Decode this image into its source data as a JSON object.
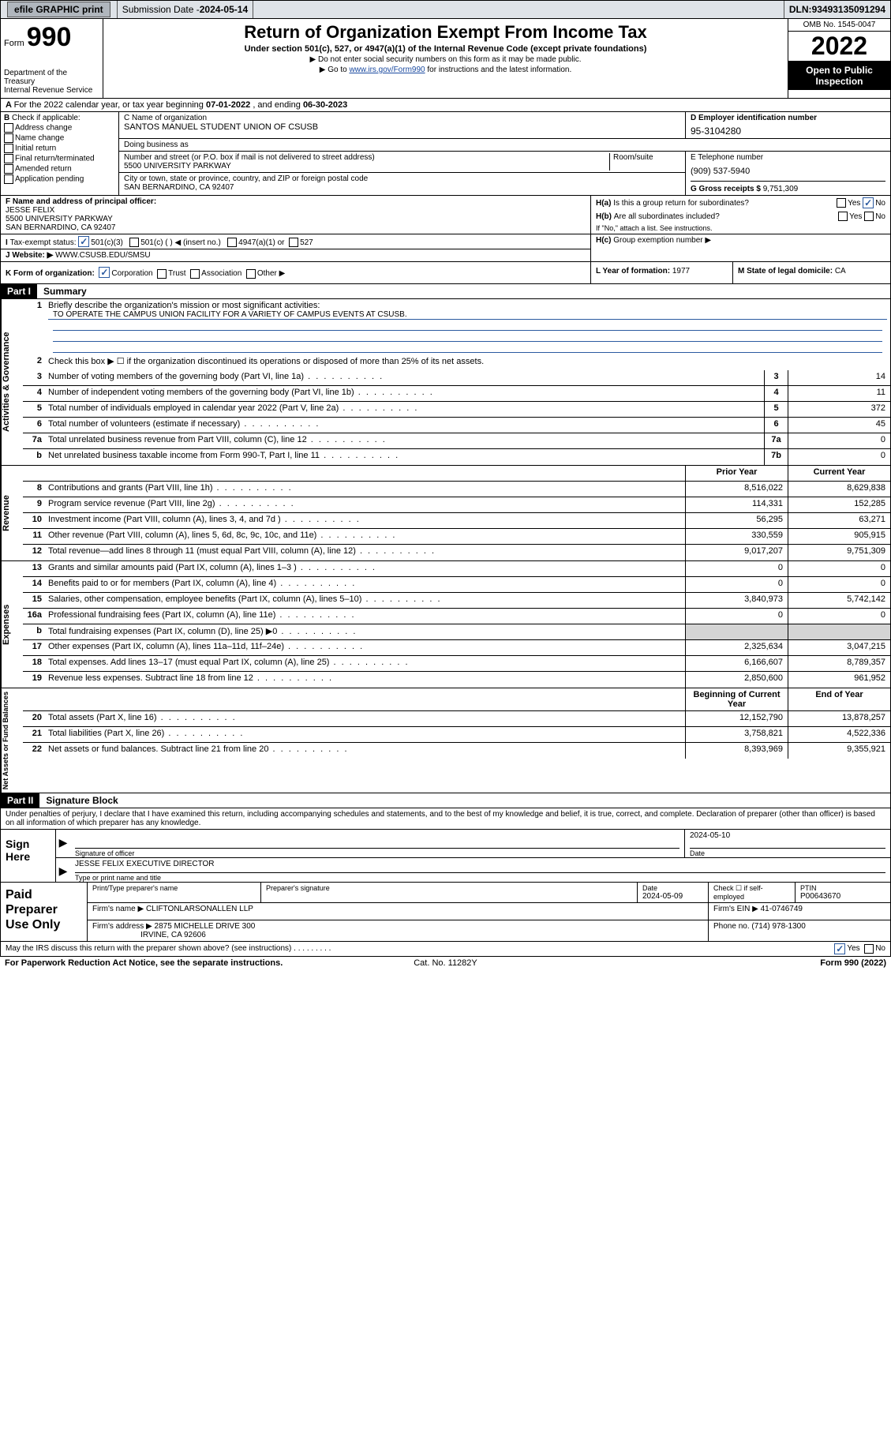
{
  "topbar": {
    "efile": "efile GRAPHIC print",
    "submission_label": "Submission Date - ",
    "submission_date": "2024-05-14",
    "dln_label": "DLN: ",
    "dln": "93493135091294"
  },
  "header": {
    "form_prefix": "Form",
    "form_no": "990",
    "dept": "Department of the Treasury",
    "irs": "Internal Revenue Service",
    "title": "Return of Organization Exempt From Income Tax",
    "sub": "Under section 501(c), 527, or 4947(a)(1) of the Internal Revenue Code (except private foundations)",
    "instr1": "Do not enter social security numbers on this form as it may be made public.",
    "instr2_pre": "Go to ",
    "instr2_link": "www.irs.gov/Form990",
    "instr2_post": " for instructions and the latest information.",
    "omb": "OMB No. 1545-0047",
    "year": "2022",
    "open": "Open to Public Inspection"
  },
  "A": {
    "text_pre": "For the 2022 calendar year, or tax year beginning ",
    "begin": "07-01-2022",
    "mid": " , and ending ",
    "end": "06-30-2023"
  },
  "B": {
    "hdr": "Check if applicable:",
    "items": [
      "Address change",
      "Name change",
      "Initial return",
      "Final return/terminated",
      "Amended return",
      "Application pending"
    ]
  },
  "C": {
    "name_lbl": "C Name of organization",
    "name": "SANTOS MANUEL STUDENT UNION OF CSUSB",
    "dba_lbl": "Doing business as",
    "addr_lbl": "Number and street (or P.O. box if mail is not delivered to street address)",
    "suite_lbl": "Room/suite",
    "addr": "5500 UNIVERSITY PARKWAY",
    "city_lbl": "City or town, state or province, country, and ZIP or foreign postal code",
    "city": "SAN BERNARDINO, CA  92407"
  },
  "D": {
    "lbl": "D Employer identification number",
    "val": "95-3104280"
  },
  "E": {
    "lbl": "E Telephone number",
    "val": "(909) 537-5940"
  },
  "G": {
    "lbl": "G Gross receipts $ ",
    "val": "9,751,309"
  },
  "F": {
    "lbl": "F  Name and address of principal officer:",
    "name": "JESSE FELIX",
    "addr1": "5500 UNIVERSITY PARKWAY",
    "addr2": "SAN BERNARDINO, CA  92407"
  },
  "I": {
    "lbl": "Tax-exempt status:",
    "o1": "501(c)(3)",
    "o2": "501(c) (    ) ◀ (insert no.)",
    "o3": "4947(a)(1) or",
    "o4": "527"
  },
  "J": {
    "lbl": "Website: ▶ ",
    "val": "WWW.CSUSB.EDU/SMSU"
  },
  "H": {
    "a_lbl": "Is this a group return for subordinates?",
    "a_pre": "H(a)",
    "b_pre": "H(b)",
    "b_lbl": "Are all subordinates included?",
    "b_note": "If \"No,\" attach a list. See instructions.",
    "c_pre": "H(c)",
    "c_lbl": "Group exemption number ▶",
    "yes": "Yes",
    "no": "No"
  },
  "K": {
    "lbl": "K Form of organization:",
    "opts": [
      "Corporation",
      "Trust",
      "Association",
      "Other ▶"
    ]
  },
  "L": {
    "lbl": "L Year of formation: ",
    "val": "1977"
  },
  "M": {
    "lbl": "M State of legal domicile: ",
    "val": "CA"
  },
  "part1": {
    "hdr": "Part I",
    "title": "Summary",
    "q1": "Briefly describe the organization's mission or most significant activities:",
    "q1_ans": "TO OPERATE THE CAMPUS UNION FACILITY FOR A VARIETY OF CAMPUS EVENTS AT CSUSB.",
    "q2": "Check this box ▶ ☐  if the organization discontinued its operations or disposed of more than 25% of its net assets.",
    "rows_gov": [
      {
        "n": "3",
        "d": "Number of voting members of the governing body (Part VI, line 1a)",
        "box": "3",
        "v": "14"
      },
      {
        "n": "4",
        "d": "Number of independent voting members of the governing body (Part VI, line 1b)",
        "box": "4",
        "v": "11"
      },
      {
        "n": "5",
        "d": "Total number of individuals employed in calendar year 2022 (Part V, line 2a)",
        "box": "5",
        "v": "372"
      },
      {
        "n": "6",
        "d": "Total number of volunteers (estimate if necessary)",
        "box": "6",
        "v": "45"
      },
      {
        "n": "7a",
        "d": "Total unrelated business revenue from Part VIII, column (C), line 12",
        "box": "7a",
        "v": "0"
      },
      {
        "n": "b",
        "d": "Net unrelated business taxable income from Form 990-T, Part I, line 11",
        "box": "7b",
        "v": "0"
      }
    ],
    "head_prior": "Prior Year",
    "head_curr": "Current Year",
    "rows_rev": [
      {
        "n": "8",
        "d": "Contributions and grants (Part VIII, line 1h)",
        "p": "8,516,022",
        "c": "8,629,838"
      },
      {
        "n": "9",
        "d": "Program service revenue (Part VIII, line 2g)",
        "p": "114,331",
        "c": "152,285"
      },
      {
        "n": "10",
        "d": "Investment income (Part VIII, column (A), lines 3, 4, and 7d )",
        "p": "56,295",
        "c": "63,271"
      },
      {
        "n": "11",
        "d": "Other revenue (Part VIII, column (A), lines 5, 6d, 8c, 9c, 10c, and 11e)",
        "p": "330,559",
        "c": "905,915"
      },
      {
        "n": "12",
        "d": "Total revenue—add lines 8 through 11 (must equal Part VIII, column (A), line 12)",
        "p": "9,017,207",
        "c": "9,751,309"
      }
    ],
    "rows_exp": [
      {
        "n": "13",
        "d": "Grants and similar amounts paid (Part IX, column (A), lines 1–3 )",
        "p": "0",
        "c": "0"
      },
      {
        "n": "14",
        "d": "Benefits paid to or for members (Part IX, column (A), line 4)",
        "p": "0",
        "c": "0"
      },
      {
        "n": "15",
        "d": "Salaries, other compensation, employee benefits (Part IX, column (A), lines 5–10)",
        "p": "3,840,973",
        "c": "5,742,142"
      },
      {
        "n": "16a",
        "d": "Professional fundraising fees (Part IX, column (A), line 11e)",
        "p": "0",
        "c": "0"
      },
      {
        "n": "b",
        "d": "Total fundraising expenses (Part IX, column (D), line 25) ▶0",
        "p": "",
        "c": "",
        "shade": true
      },
      {
        "n": "17",
        "d": "Other expenses (Part IX, column (A), lines 11a–11d, 11f–24e)",
        "p": "2,325,634",
        "c": "3,047,215"
      },
      {
        "n": "18",
        "d": "Total expenses. Add lines 13–17 (must equal Part IX, column (A), line 25)",
        "p": "6,166,607",
        "c": "8,789,357"
      },
      {
        "n": "19",
        "d": "Revenue less expenses. Subtract line 18 from line 12",
        "p": "2,850,600",
        "c": "961,952"
      }
    ],
    "head_begin": "Beginning of Current Year",
    "head_end": "End of Year",
    "rows_net": [
      {
        "n": "20",
        "d": "Total assets (Part X, line 16)",
        "p": "12,152,790",
        "c": "13,878,257"
      },
      {
        "n": "21",
        "d": "Total liabilities (Part X, line 26)",
        "p": "3,758,821",
        "c": "4,522,336"
      },
      {
        "n": "22",
        "d": "Net assets or fund balances. Subtract line 21 from line 20",
        "p": "8,393,969",
        "c": "9,355,921"
      }
    ]
  },
  "vtabs": {
    "gov": "Activities & Governance",
    "rev": "Revenue",
    "exp": "Expenses",
    "net": "Net Assets or Fund Balances"
  },
  "part2": {
    "hdr": "Part II",
    "title": "Signature Block",
    "intro": "Under penalties of perjury, I declare that I have examined this return, including accompanying schedules and statements, and to the best of my knowledge and belief, it is true, correct, and complete. Declaration of preparer (other than officer) is based on all information of which preparer has any knowledge."
  },
  "sign": {
    "label": "Sign Here",
    "sig_lbl": "Signature of officer",
    "date_lbl": "Date",
    "date": "2024-05-10",
    "name": "JESSE FELIX  EXECUTIVE DIRECTOR",
    "name_lbl": "Type or print name and title"
  },
  "paid": {
    "label": "Paid Preparer Use Only",
    "col1": "Print/Type preparer's name",
    "col2": "Preparer's signature",
    "col3_lbl": "Date",
    "col3": "2024-05-09",
    "col4_lbl": "Check ☐ if self-employed",
    "col5_lbl": "PTIN",
    "col5": "P00643670",
    "firm_name_lbl": "Firm's name     ▶ ",
    "firm_name": "CLIFTONLARSONALLEN LLP",
    "firm_ein_lbl": "Firm's EIN ▶ ",
    "firm_ein": "41-0746749",
    "firm_addr_lbl": "Firm's address ▶ ",
    "firm_addr1": "2875 MICHELLE DRIVE 300",
    "firm_addr2": "IRVINE, CA  92606",
    "phone_lbl": "Phone no. ",
    "phone": "(714) 978-1300"
  },
  "footer": {
    "q": "May the IRS discuss this return with the preparer shown above? (see instructions)",
    "yes": "Yes",
    "no": "No",
    "pra": "For Paperwork Reduction Act Notice, see the separate instructions.",
    "cat": "Cat. No. 11282Y",
    "form": "Form 990 (2022)"
  }
}
